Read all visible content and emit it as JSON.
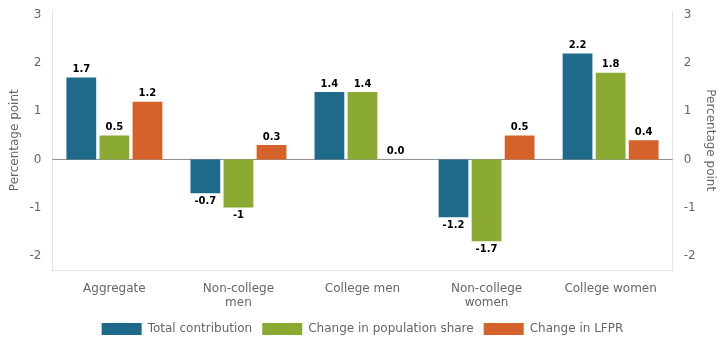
{
  "chart_data": {
    "type": "bar",
    "categories": [
      "Aggregate",
      "Non-college\nmen",
      "College men",
      "Non-college\nwomen",
      "College women"
    ],
    "series": [
      {
        "name": "Total contribution",
        "color": "#1f6a8a",
        "values": [
          1.7,
          -0.7,
          1.4,
          -1.2,
          2.2
        ]
      },
      {
        "name": "Change in population share",
        "color": "#8aaa32",
        "values": [
          0.5,
          -1.0,
          1.4,
          -1.7,
          1.8
        ]
      },
      {
        "name": "Change in LFPR",
        "color": "#d4622a",
        "values": [
          1.2,
          0.3,
          0.0,
          0.5,
          0.4
        ],
        "value_labels": [
          "1.2",
          "0.3",
          "0.0",
          "0.5",
          "0.4"
        ]
      }
    ],
    "ylabel": "Percentage point",
    "y2label": "Percentage point",
    "ylim": [
      -2.3,
      3.1
    ],
    "yticks": [
      -2,
      -1,
      0,
      1,
      2,
      3
    ],
    "y2lim": [
      -2.3,
      3.1
    ],
    "y2ticks": [
      -2,
      -1,
      0,
      1,
      2,
      3
    ],
    "grid": false,
    "legend": "bottom",
    "data_labels": true
  }
}
